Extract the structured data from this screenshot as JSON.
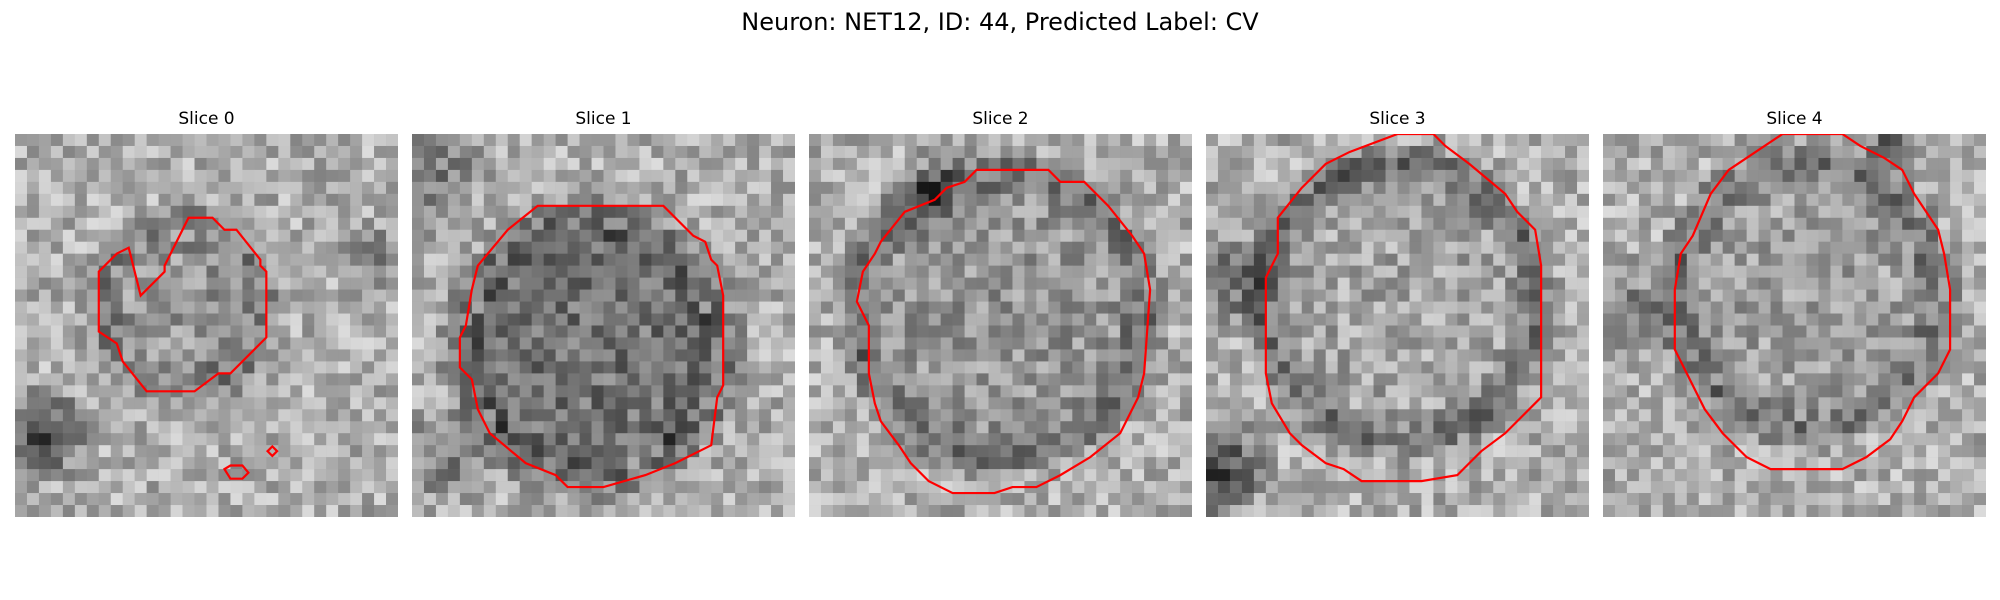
{
  "figure": {
    "title": "Neuron: NET12, ID: 44, Predicted Label: CV",
    "contour_color": "#ff0000",
    "colormap": "grayscale"
  },
  "panels": [
    {
      "title": "Slice 0"
    },
    {
      "title": "Slice 1"
    },
    {
      "title": "Slice 2"
    },
    {
      "title": "Slice 3"
    },
    {
      "title": "Slice 4"
    }
  ]
}
